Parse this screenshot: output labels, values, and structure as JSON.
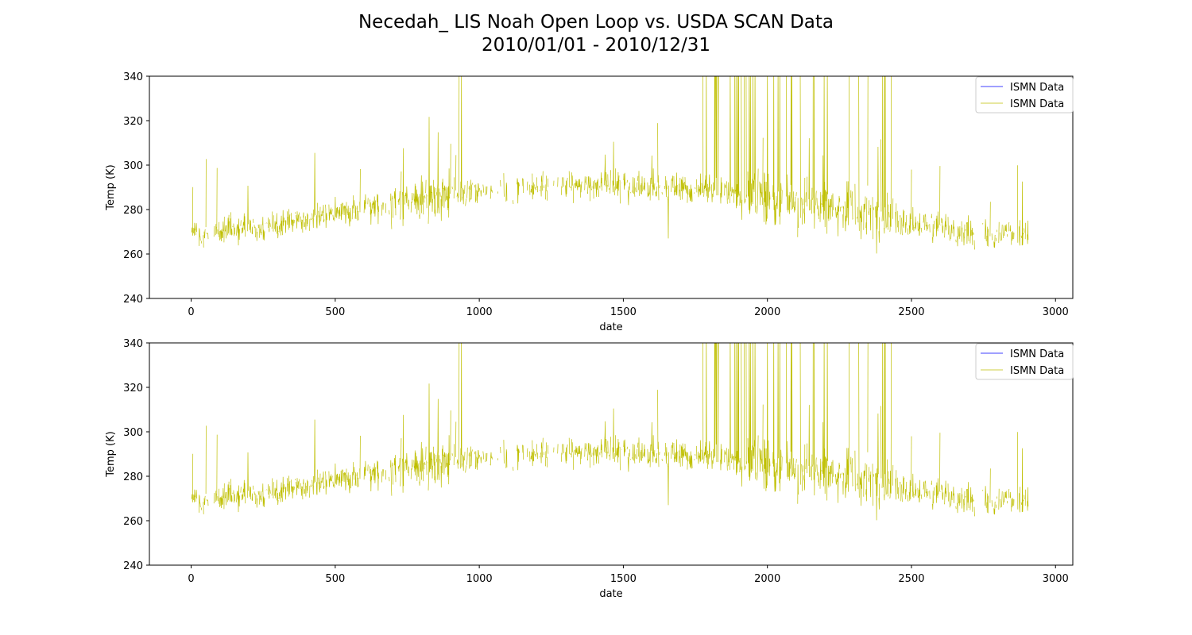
{
  "figure": {
    "title_line1": "Necedah_ LIS Noah Open Loop vs. USDA SCAN Data",
    "title_line2": "2010/01/01 - 2010/12/31"
  },
  "colors": {
    "series_blue": "#0000ff",
    "series_yellow": "#bfbf00",
    "axes": "#000000",
    "legend_border": "#cccccc"
  },
  "chart_data": [
    {
      "type": "line",
      "xlabel": "date",
      "ylabel": "Temp (K)",
      "xlim": [
        -145,
        3060
      ],
      "ylim": [
        240,
        340
      ],
      "xticks": [
        0,
        500,
        1000,
        1500,
        2000,
        2500,
        3000
      ],
      "yticks": [
        240,
        260,
        280,
        300,
        320,
        340
      ],
      "legend_placement": "top-right",
      "grid": false,
      "series": [
        {
          "name": "ISMN Data",
          "color": "#0000ff",
          "x": [],
          "y": []
        },
        {
          "name": "ISMN Data",
          "color": "#bfbf00",
          "x": [],
          "y": []
        }
      ]
    },
    {
      "type": "line",
      "xlabel": "date",
      "ylabel": "Temp (K)",
      "xlim": [
        -145,
        3060
      ],
      "ylim": [
        240,
        340
      ],
      "xticks": [
        0,
        500,
        1000,
        1500,
        2000,
        2500,
        3000
      ],
      "yticks": [
        240,
        260,
        280,
        300,
        320,
        340
      ],
      "legend_placement": "top-right",
      "grid": false,
      "series": [
        {
          "name": "ISMN Data",
          "color": "#0000ff",
          "x": [],
          "y": []
        },
        {
          "name": "ISMN Data",
          "color": "#bfbf00",
          "x": [],
          "y": []
        }
      ]
    }
  ]
}
